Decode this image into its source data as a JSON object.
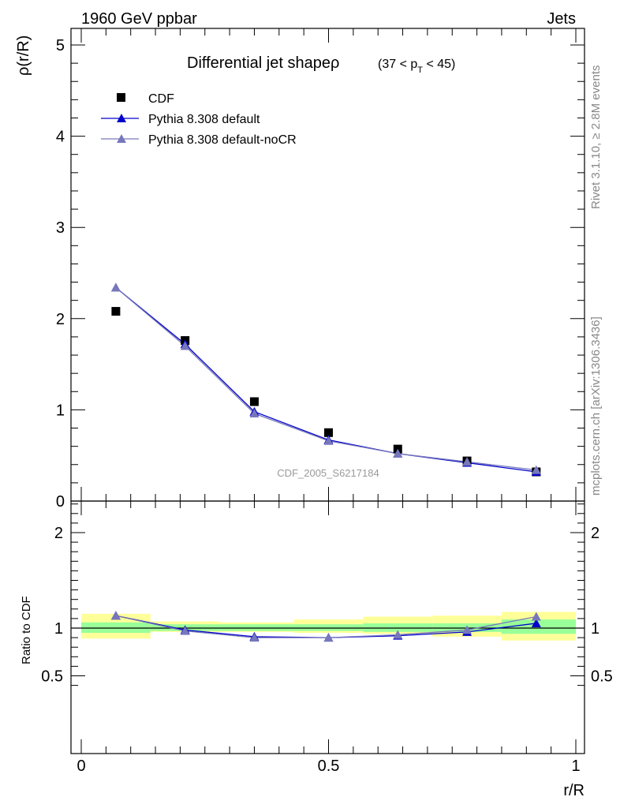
{
  "header": {
    "left": "1960 GeV ppbar",
    "right": "Jets"
  },
  "side_text": {
    "top": "Rivet 3.1.10, ≥ 2.8M events",
    "bottom": "mcplots.cern.ch [arXiv:1306.3436]"
  },
  "chart_data": [
    {
      "type": "scatter",
      "title": "Differential jet shapeρ",
      "title_parts": {
        "pre": "(37 < p",
        "sub": "T",
        "post": " < 45)"
      },
      "ylabel": "ρ(r/R)",
      "xlabel": "",
      "xlim": [
        0,
        1
      ],
      "ylim": [
        0,
        5.2
      ],
      "yticks": [
        "0",
        "1",
        "2",
        "3",
        "4",
        "5"
      ],
      "watermark": "CDF_2005_S6217184",
      "legend_position": "top-left",
      "x": [
        0.07,
        0.21,
        0.35,
        0.5,
        0.64,
        0.78,
        0.92
      ],
      "series": [
        {
          "name": "CDF",
          "marker": "square",
          "color": "#000000",
          "values": [
            2.08,
            1.76,
            1.09,
            0.75,
            0.57,
            0.44,
            0.32
          ]
        },
        {
          "name": "Pythia 8.308 default",
          "marker": "triangle",
          "color": "#0000cc",
          "values": [
            2.34,
            1.72,
            0.98,
            0.67,
            0.52,
            0.42,
            0.32
          ]
        },
        {
          "name": "Pythia 8.308 default-noCR",
          "marker": "triangle",
          "color": "#7777bb",
          "values": [
            2.34,
            1.7,
            0.96,
            0.66,
            0.52,
            0.43,
            0.34
          ]
        }
      ]
    },
    {
      "type": "line",
      "ylabel": "Ratio to CDF",
      "xlabel": "r/R",
      "xlim": [
        0,
        1
      ],
      "ylim": [
        0.35,
        2.3
      ],
      "xticks": [
        "0",
        "0.5",
        "1"
      ],
      "yticks": [
        "0.5",
        "1",
        "2"
      ],
      "x": [
        0.07,
        0.21,
        0.35,
        0.5,
        0.64,
        0.78,
        0.92
      ],
      "bin_edges": [
        0,
        0.14,
        0.28,
        0.43,
        0.57,
        0.71,
        0.85,
        1.0
      ],
      "band_inner": [
        [
          0.95,
          1.06
        ],
        [
          0.97,
          1.04
        ],
        [
          0.97,
          1.04
        ],
        [
          0.97,
          1.04
        ],
        [
          0.96,
          1.05
        ],
        [
          0.96,
          1.05
        ],
        [
          0.94,
          1.09
        ]
      ],
      "band_outer": [
        [
          0.89,
          1.15
        ],
        [
          0.96,
          1.07
        ],
        [
          0.96,
          1.06
        ],
        [
          0.95,
          1.09
        ],
        [
          0.94,
          1.12
        ],
        [
          0.91,
          1.13
        ],
        [
          0.87,
          1.17
        ]
      ],
      "series": [
        {
          "name": "Pythia 8.308 default",
          "color": "#0000cc",
          "values": [
            1.13,
            0.98,
            0.91,
            0.9,
            0.92,
            0.96,
            1.05
          ]
        },
        {
          "name": "Pythia 8.308 default-noCR",
          "color": "#7777bb",
          "values": [
            1.13,
            0.97,
            0.9,
            0.9,
            0.93,
            0.98,
            1.12
          ]
        }
      ]
    }
  ]
}
